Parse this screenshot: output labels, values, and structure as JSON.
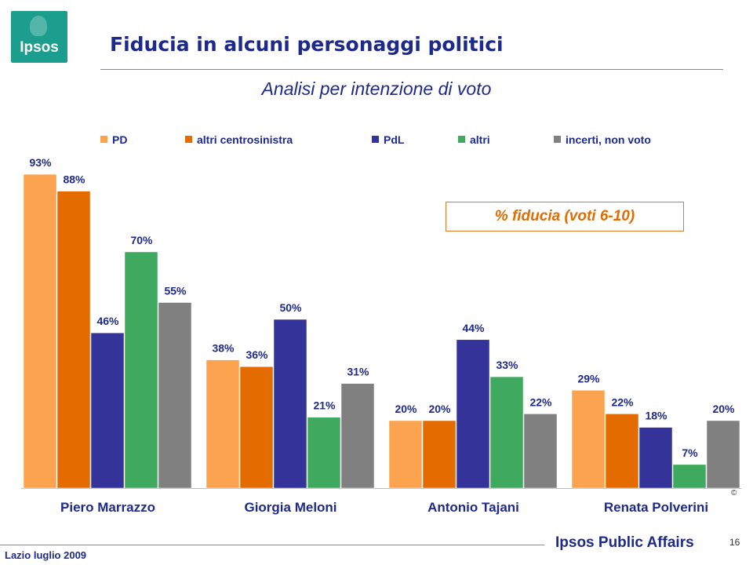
{
  "logo": {
    "text": "Ipsos"
  },
  "header": {
    "title": "Fiducia in alcuni personaggi politici",
    "subtitle": "Analisi per intenzione di voto"
  },
  "callout": {
    "text": "% fiducia (voti 6-10)"
  },
  "colors": {
    "PD": "#fba34e",
    "altri_centrosinistra": "#e36b00",
    "PdL": "#333399",
    "altri": "#3faa5f",
    "incerti": "#808080",
    "title": "#1d2a8c"
  },
  "chart_data": {
    "type": "bar",
    "categories": [
      "Piero Marrazzo",
      "Giorgia Meloni",
      "Antonio Tajani",
      "Renata Polverini"
    ],
    "series": [
      {
        "name": "PD",
        "color": "#fba34e",
        "values": [
          93,
          38,
          20,
          29
        ],
        "labels": [
          "93%",
          "38%",
          "20%",
          "29%"
        ]
      },
      {
        "name": "altri centrosinistra",
        "color": "#e36b00",
        "values": [
          88,
          36,
          20,
          22
        ],
        "labels": [
          "88%",
          "36%",
          "20%",
          "22%"
        ]
      },
      {
        "name": "PdL",
        "color": "#333399",
        "values": [
          46,
          50,
          44,
          18
        ],
        "labels": [
          "46%",
          "50%",
          "44%",
          "18%"
        ]
      },
      {
        "name": "altri",
        "color": "#3faa5f",
        "values": [
          70,
          21,
          33,
          7
        ],
        "labels": [
          "70%",
          "21%",
          "33%",
          "7%"
        ]
      },
      {
        "name": "incerti, non voto",
        "color": "#808080",
        "values": [
          55,
          31,
          22,
          20
        ],
        "labels": [
          "55%",
          "31%",
          "22%",
          "20%"
        ]
      }
    ],
    "ylim": [
      0,
      100
    ],
    "legend_position": "top",
    "grid": false,
    "xlabel": "",
    "ylabel": ""
  },
  "footer": {
    "left": "Lazio luglio 2009",
    "brand": "Ipsos Public Affairs",
    "page": "16",
    "copyright": "©"
  }
}
